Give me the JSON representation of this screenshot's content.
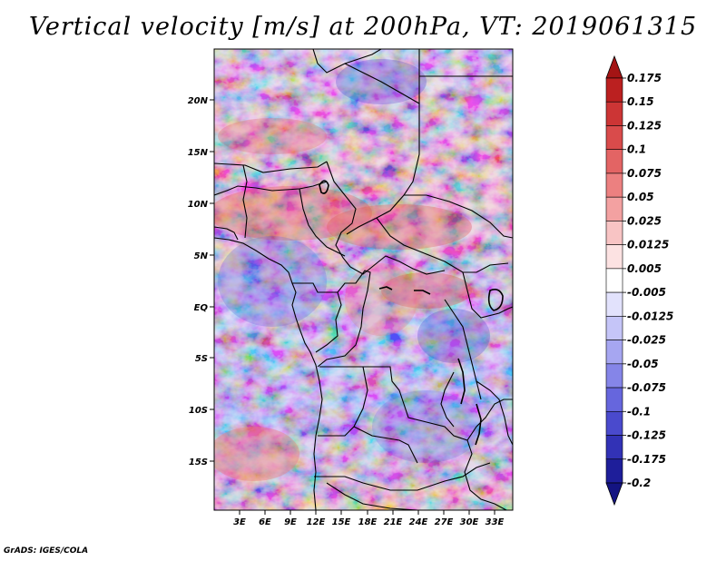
{
  "title": "Vertical velocity [m/s] at 200hPa, VT: 2019061315",
  "footer": "GrADS: IGES/COLA",
  "map": {
    "lat_labels": [
      "20N",
      "15N",
      "10N",
      "5N",
      "EQ",
      "5S",
      "10S",
      "15S"
    ],
    "lon_labels": [
      "3E",
      "6E",
      "9E",
      "12E",
      "15E",
      "18E",
      "21E",
      "24E",
      "27E",
      "30E",
      "33E"
    ]
  },
  "colorbar": {
    "labels": [
      "0.175",
      "0.15",
      "0.125",
      "0.1",
      "0.075",
      "0.05",
      "0.025",
      "0.0125",
      "0.005",
      "-0.005",
      "-0.0125",
      "-0.025",
      "-0.05",
      "-0.075",
      "-0.1",
      "-0.125",
      "-0.175",
      "-0.2"
    ],
    "colors": [
      "#a41414",
      "#bb2020",
      "#cc3535",
      "#d94b4b",
      "#e36464",
      "#ec8080",
      "#f3a1a1",
      "#f8c4c4",
      "#fce2e2",
      "#ffffff",
      "#e2e2fc",
      "#c5c5f8",
      "#a6a6f1",
      "#8585e8",
      "#6666dd",
      "#4a4acd",
      "#3232b6",
      "#1e1e9a",
      "#141482"
    ]
  }
}
